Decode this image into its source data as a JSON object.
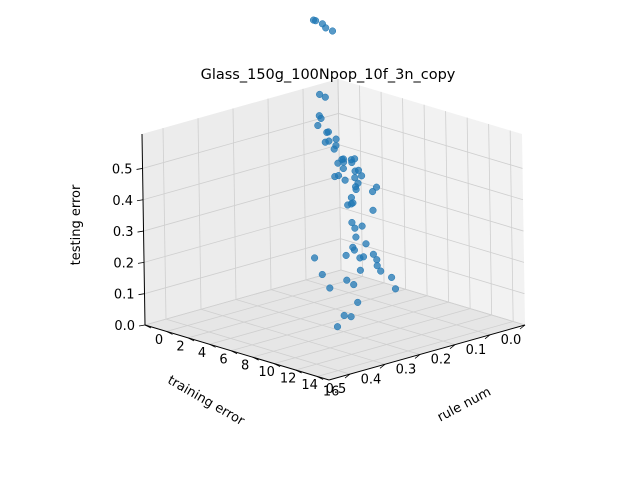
{
  "chart_data": {
    "type": "scatter",
    "projection": "3d",
    "title": "Glass_150g_100Npop_10f_3n_copy",
    "xlabel": "rule num",
    "ylabel": "training error",
    "zlabel": "testing error",
    "x_ticks": [
      "0",
      "2",
      "4",
      "6",
      "8",
      "10",
      "12",
      "14",
      "16"
    ],
    "y_ticks": [
      "0.0",
      "0.1",
      "0.2",
      "0.3",
      "0.4",
      "0.5"
    ],
    "z_ticks": [
      "0.0",
      "0.1",
      "0.2",
      "0.3",
      "0.4",
      "0.5"
    ],
    "grid": true,
    "marker_color": "#1f77b4",
    "series": [
      {
        "points": [
          [
            -4.5,
            -0.07,
            0.73
          ],
          [
            -4.3,
            -0.07,
            0.73
          ],
          [
            -4.0,
            -0.08,
            0.72
          ],
          [
            -3.7,
            -0.08,
            0.71
          ],
          [
            -3.4,
            -0.09,
            0.7
          ],
          [
            -2.4,
            -0.02,
            0.53
          ],
          [
            -2.2,
            -0.03,
            0.52
          ],
          [
            0.0,
            0.05,
            0.5
          ],
          [
            0.5,
            0.07,
            0.52
          ],
          [
            1.0,
            0.06,
            0.47
          ],
          [
            1.0,
            0.09,
            0.5
          ],
          [
            1.5,
            0.08,
            0.48
          ],
          [
            2.0,
            0.07,
            0.44
          ],
          [
            2.0,
            0.1,
            0.46
          ],
          [
            2.5,
            0.09,
            0.44
          ],
          [
            3.0,
            0.12,
            0.48
          ],
          [
            3.0,
            0.08,
            0.38
          ],
          [
            4.0,
            0.11,
            0.43
          ],
          [
            4.0,
            0.13,
            0.5
          ],
          [
            5.0,
            0.1,
            0.36
          ],
          [
            5.0,
            0.14,
            0.44
          ],
          [
            5.5,
            0.16,
            0.46
          ],
          [
            6.0,
            0.12,
            0.4
          ],
          [
            6.0,
            0.15,
            0.34
          ],
          [
            7.0,
            0.17,
            0.42
          ],
          [
            7.0,
            0.12,
            0.36
          ],
          [
            8.0,
            0.2,
            0.5
          ],
          [
            8.0,
            0.15,
            0.32
          ],
          [
            9.0,
            0.22,
            0.48
          ],
          [
            9.0,
            0.24,
            0.52
          ],
          [
            10.0,
            0.2,
            0.43
          ],
          [
            10.0,
            0.26,
            0.5
          ],
          [
            11.0,
            0.29,
            0.47
          ],
          [
            12.0,
            0.33,
            0.57
          ],
          [
            12.0,
            0.35,
            0.52
          ],
          [
            13.0,
            0.4,
            0.6
          ],
          [
            14.0,
            0.44,
            0.58
          ],
          [
            14.0,
            0.38,
            0.52
          ],
          [
            15.0,
            0.46,
            0.6
          ],
          [
            15.0,
            0.42,
            0.5
          ],
          [
            7.0,
            0.18,
            0.28
          ],
          [
            8.0,
            0.2,
            0.25
          ],
          [
            8.5,
            0.22,
            0.22
          ],
          [
            9.0,
            0.22,
            0.2
          ],
          [
            10.0,
            0.27,
            0.26
          ],
          [
            10.0,
            0.24,
            0.22
          ],
          [
            11.0,
            0.28,
            0.2
          ],
          [
            11.0,
            0.32,
            0.26
          ],
          [
            12.0,
            0.33,
            0.18
          ],
          [
            13.0,
            0.38,
            0.22
          ],
          [
            13.0,
            0.35,
            0.14
          ],
          [
            14.0,
            0.4,
            0.12
          ],
          [
            15.0,
            0.45,
            0.15
          ],
          [
            16.0,
            0.5,
            0.14
          ],
          [
            3.0,
            0.05,
            0.18
          ],
          [
            4.0,
            0.06,
            0.2
          ],
          [
            5.0,
            0.08,
            0.16
          ],
          [
            6.0,
            0.09,
            0.14
          ],
          [
            7.0,
            0.11,
            0.12
          ],
          [
            5.0,
            0.05,
            0.1
          ],
          [
            6.0,
            0.07,
            0.08
          ],
          [
            8.0,
            0.1,
            0.09
          ],
          [
            9.0,
            0.12,
            0.07
          ],
          [
            4.0,
            0.1,
            0.28
          ],
          [
            5.0,
            0.12,
            0.3
          ],
          [
            12.0,
            0.44,
            0.3
          ],
          [
            14.0,
            0.48,
            0.28
          ],
          [
            16.0,
            0.52,
            0.27
          ]
        ]
      }
    ]
  }
}
